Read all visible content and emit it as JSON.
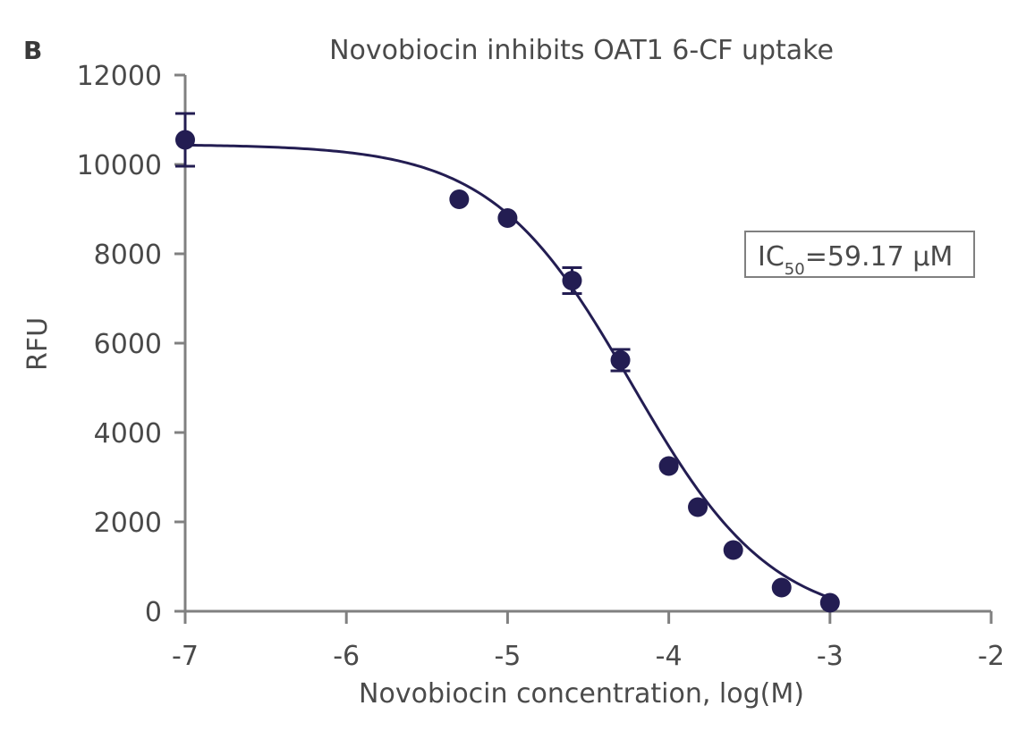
{
  "chart_data": {
    "type": "scatter",
    "panel_letter": "B",
    "title": "Novobiocin inhibits OAT1 6-CF uptake",
    "xlabel": "Novobiocin concentration, log(M)",
    "ylabel": "RFU",
    "xlim": [
      -7,
      -2
    ],
    "ylim": [
      0,
      12000
    ],
    "x_ticks": [
      -7,
      -6,
      -5,
      -4,
      -3,
      -2
    ],
    "x_tick_labels": [
      "-7",
      "-6",
      "-5",
      "-4",
      "-3",
      "-2"
    ],
    "y_ticks": [
      0,
      2000,
      4000,
      6000,
      8000,
      10000,
      12000
    ],
    "y_tick_labels": [
      "0",
      "2000",
      "4000",
      "6000",
      "8000",
      "10000",
      "12000"
    ],
    "grid": false,
    "series": [
      {
        "x": [
          -7,
          -5.3,
          -5,
          -4.6,
          -4.3,
          -4,
          -3.82,
          -3.6,
          -3.3,
          -3
        ],
        "y": [
          10550,
          9220,
          8800,
          7400,
          5620,
          3250,
          2330,
          1370,
          530,
          190
        ],
        "error": [
          590,
          0,
          0,
          290,
          240,
          0,
          0,
          0,
          0,
          0
        ]
      }
    ],
    "fit_curve": {
      "model": "four-parameter logistic",
      "top": 10450,
      "bottom": -300,
      "log_ic50": -4.228,
      "hill_slope": -1.0
    },
    "annotation": {
      "text_main": "IC",
      "text_sub": "50",
      "text_rest": "=59.17 µM"
    },
    "colors": {
      "series": "#231d52",
      "axis": "#808080",
      "text": "#4a4a4a"
    }
  }
}
